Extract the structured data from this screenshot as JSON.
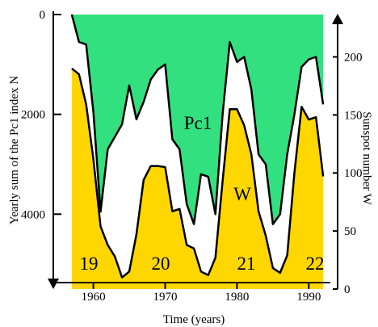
{
  "chart_data": {
    "type": "area",
    "xlabel": "Time (years)",
    "ylabel_left": "Yearly sum of the Pc1 index N",
    "ylabel_right": "Sunspot number W",
    "x_range": [
      1956,
      1993
    ],
    "y_left_range": [
      0,
      5500
    ],
    "y_right_range": [
      0,
      236.5
    ],
    "y_left_inverted": true,
    "x_ticks": [
      1960,
      1970,
      1980,
      1990
    ],
    "y_left_ticks": [
      0,
      2000,
      4000
    ],
    "y_right_ticks": [
      0,
      50,
      100,
      150,
      200
    ],
    "series": [
      {
        "name": "Pc1",
        "color": "#33e07f",
        "x": [
          1957,
          1958,
          1959,
          1960,
          1961,
          1962,
          1963,
          1964,
          1965,
          1966,
          1967,
          1968,
          1969,
          1970,
          1971,
          1972,
          1973,
          1974,
          1975,
          1976,
          1977,
          1978,
          1979,
          1980,
          1981,
          1982,
          1983,
          1984,
          1985,
          1986,
          1987,
          1988,
          1989,
          1990,
          1991,
          1992
        ],
        "y": [
          0,
          550,
          600,
          1950,
          3950,
          2700,
          2450,
          2200,
          1420,
          2100,
          1750,
          1300,
          1100,
          1000,
          2500,
          2700,
          3800,
          4200,
          3200,
          3250,
          4000,
          2000,
          550,
          950,
          850,
          1500,
          2800,
          3000,
          4200,
          4000,
          2800,
          2000,
          1050,
          900,
          850,
          1800
        ]
      },
      {
        "name": "W",
        "color": "#ffd700",
        "x": [
          1957,
          1958,
          1959,
          1960,
          1961,
          1962,
          1963,
          1964,
          1965,
          1966,
          1967,
          1968,
          1969,
          1970,
          1971,
          1972,
          1973,
          1974,
          1975,
          1976,
          1977,
          1978,
          1979,
          1980,
          1981,
          1982,
          1983,
          1984,
          1985,
          1986,
          1987,
          1988,
          1989,
          1990,
          1991,
          1992
        ],
        "y": [
          190,
          185,
          159,
          112,
          54,
          38,
          28,
          10,
          15,
          47,
          94,
          106,
          106,
          105,
          67,
          69,
          38,
          35,
          15,
          12,
          27,
          93,
          155,
          155,
          141,
          116,
          67,
          46,
          18,
          14,
          29,
          100,
          157,
          146,
          148,
          97
        ]
      }
    ],
    "annotations": [
      "Pc1",
      "W",
      "19",
      "20",
      "21",
      "22"
    ]
  }
}
